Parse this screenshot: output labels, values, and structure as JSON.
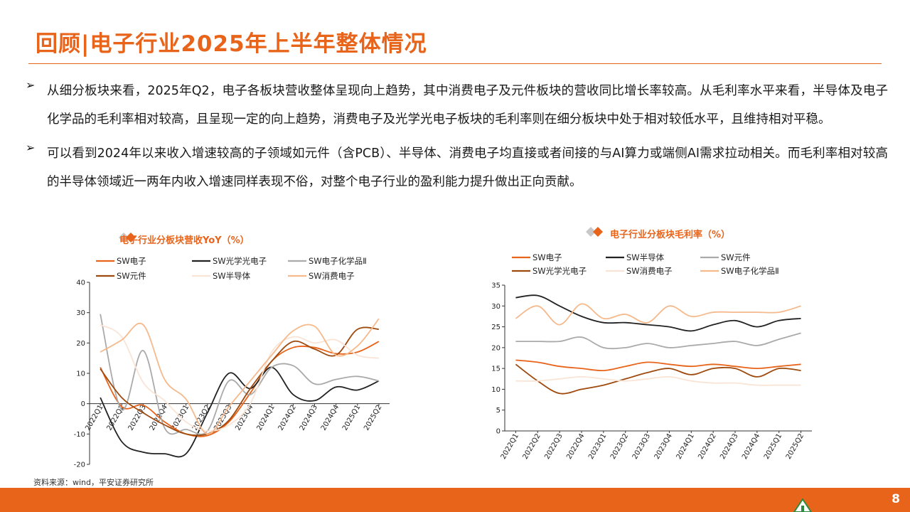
{
  "header": {
    "title": "回顾|电子行业2025年上半年整体情况"
  },
  "bullets": [
    {
      "text": "从细分板块来看，2025年Q2，电子各板块营收整体呈现向上趋势，其中消费电子及元件板块的营收同比增长率较高。从毛利率水平来看，半导体及电子化学品的毛利率相对较高，且呈现一定的向上趋势，消费电子及光学光电子板块的毛利率则在细分板块中处于相对较低水平，且维持相对平稳。"
    },
    {
      "text": "可以看到2024年以来收入增速较高的子领域如元件（含PCB）、半导体、消费电子均直接或者间接的与AI算力或端侧AI需求拉动相关。而毛利率相对较高的半导体领域近一两年内收入增速同样表现不俗，对整个电子行业的盈利能力提升做出正向贡献。"
    }
  ],
  "footer": {
    "source": "资料来源：wind，平安证券研究所",
    "page_number": "8"
  },
  "colors": {
    "accent": "#E8641B",
    "diamond_grey": "#C8C8C8"
  },
  "chart_data": [
    {
      "type": "line",
      "title": "电子行业分板块营收YoY（%）",
      "categories": [
        "2022Q1",
        "2022Q2",
        "2022Q3",
        "2022Q4",
        "2023Q1",
        "2023Q2",
        "2023Q3",
        "2023Q4",
        "2024Q1",
        "2024Q2",
        "2024Q3",
        "2024Q4",
        "2025Q1",
        "2025Q2"
      ],
      "ylim": [
        -20,
        40
      ],
      "yticks": [
        -20,
        -10,
        0,
        10,
        20,
        30,
        40
      ],
      "legend_position": "top",
      "series": [
        {
          "name": "SW电子",
          "color": "#E8641B",
          "width": 1.8,
          "values": [
            12,
            -1,
            -0.5,
            -6,
            -10,
            -10.5,
            -6,
            3.5,
            14,
            18.5,
            18.5,
            16.5,
            17,
            20.5
          ]
        },
        {
          "name": "SW光学光电子",
          "color": "#222222",
          "width": 1.8,
          "values": [
            2,
            -12.5,
            -16,
            -16.5,
            -16.5,
            -3,
            10,
            5,
            12,
            3,
            1,
            5.5,
            4.5,
            7.5
          ]
        },
        {
          "name": "SW电子化学品Ⅱ",
          "color": "#AAAAAA",
          "width": 1.8,
          "values": [
            29.5,
            -2,
            17.5,
            -8,
            -8.5,
            -9,
            7.5,
            3,
            12,
            12.5,
            6.5,
            8,
            9,
            7.5
          ]
        },
        {
          "name": "SW元件",
          "color": "#9E4A0E",
          "width": 1.8,
          "values": [
            11.5,
            2,
            -3,
            -7,
            -10,
            -10,
            -5.5,
            5,
            14,
            20.5,
            18,
            16,
            24.5,
            24.5
          ]
        },
        {
          "name": "SW半导体",
          "color": "#F9E4D6",
          "width": 1.8,
          "values": [
            26,
            22,
            7,
            1,
            -6,
            -9,
            -7,
            0,
            17,
            22,
            20,
            21,
            16,
            15
          ]
        },
        {
          "name": "SW消费电子",
          "color": "#F5B98B",
          "width": 1.8,
          "values": [
            17,
            21,
            26,
            8,
            1.5,
            -10,
            -1,
            7.5,
            16,
            24,
            25.5,
            16,
            19,
            28
          ]
        }
      ]
    },
    {
      "type": "line",
      "title": "电子行业分板块毛利率（%）",
      "categories": [
        "2022Q1",
        "2022Q2",
        "2022Q3",
        "2022Q4",
        "2023Q1",
        "2023Q2",
        "2023Q3",
        "2023Q4",
        "2024Q1",
        "2024Q2",
        "2024Q3",
        "2024Q4",
        "2025Q1",
        "2025Q2"
      ],
      "ylim": [
        0,
        35
      ],
      "yticks": [
        0,
        5,
        10,
        15,
        20,
        25,
        30,
        35
      ],
      "legend_position": "top",
      "series": [
        {
          "name": "SW电子",
          "color": "#E8641B",
          "width": 1.8,
          "values": [
            17,
            16.5,
            15.5,
            15,
            14.5,
            15.5,
            16.5,
            16,
            15.5,
            16,
            15.5,
            15,
            15.5,
            16
          ]
        },
        {
          "name": "SW半导体",
          "color": "#222222",
          "width": 1.8,
          "values": [
            32,
            32.5,
            30,
            27.5,
            26,
            26,
            25.5,
            25,
            24,
            25.5,
            26.5,
            25,
            26.5,
            27
          ]
        },
        {
          "name": "SW元件",
          "color": "#AAAAAA",
          "width": 1.8,
          "values": [
            21.5,
            21.5,
            21.5,
            22.5,
            20,
            20,
            21,
            20,
            20.5,
            21,
            21.5,
            20.5,
            22,
            23.5
          ]
        },
        {
          "name": "SW光学光电子",
          "color": "#9E4A0E",
          "width": 1.8,
          "values": [
            16,
            12,
            9,
            10,
            11,
            12.5,
            14,
            15,
            13.5,
            15,
            15,
            13,
            15,
            14.5
          ]
        },
        {
          "name": "SW消费电子",
          "color": "#F9E4D6",
          "width": 1.8,
          "values": [
            12,
            12,
            12.5,
            13,
            12.5,
            12,
            12.5,
            13,
            12,
            11.5,
            11.5,
            11,
            11,
            11
          ]
        },
        {
          "name": "SW电子化学品Ⅱ",
          "color": "#F5B98B",
          "width": 1.8,
          "values": [
            27,
            30,
            25.5,
            30.5,
            27,
            28,
            26,
            30,
            27.5,
            28.5,
            28.5,
            28.5,
            28.5,
            30
          ]
        }
      ]
    }
  ]
}
